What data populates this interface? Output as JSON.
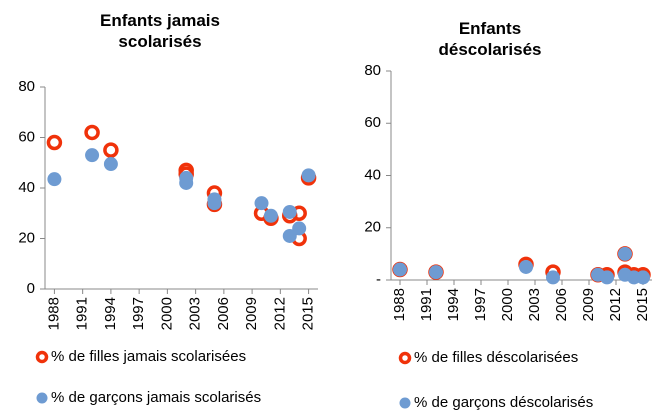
{
  "chart_data": [
    {
      "type": "scatter",
      "title": "Enfants jamais scolarisés",
      "xlim": [
        1987,
        2016
      ],
      "xticks": [
        1988,
        1991,
        1994,
        1997,
        2000,
        2003,
        2006,
        2009,
        2012,
        2015
      ],
      "ylim": [
        0,
        80
      ],
      "yticks": [
        0,
        20,
        40,
        60,
        80
      ],
      "grid": false,
      "series": [
        {
          "name": "% de filles jamais scolarisées",
          "color": "#f0320a",
          "marker": "ring",
          "x": [
            1988,
            1992,
            1994,
            2002,
            2002,
            2005,
            2005,
            2010,
            2011,
            2013,
            2014,
            2014,
            2015
          ],
          "values": [
            58,
            62,
            55,
            47,
            45.5,
            38,
            33.5,
            30,
            28,
            29,
            30,
            20,
            44
          ]
        },
        {
          "name": "% de garçons jamais scolarisés",
          "color": "#6e9bd2",
          "marker": "dot",
          "x": [
            1988,
            1992,
            1994,
            2002,
            2002,
            2005,
            2005,
            2010,
            2011,
            2013,
            2013,
            2014,
            2015
          ],
          "values": [
            43.5,
            53,
            49.5,
            44,
            42,
            35.5,
            34,
            34,
            29,
            30.5,
            21,
            24,
            45
          ]
        }
      ]
    },
    {
      "type": "scatter",
      "title": "Enfants déscolarisés",
      "xlim": [
        1987,
        2016
      ],
      "xticks": [
        1988,
        1991,
        1994,
        1997,
        2000,
        2003,
        2006,
        2009,
        2012,
        2015
      ],
      "ylim": [
        0,
        80
      ],
      "yticks": [
        {
          "value": 0,
          "label": "-"
        },
        20,
        40,
        60,
        80
      ],
      "grid": false,
      "series": [
        {
          "name": "% de filles déscolarisées",
          "color": "#f0320a",
          "marker": "ring",
          "x": [
            1988,
            1992,
            2002,
            2005,
            2010,
            2011,
            2013,
            2013,
            2014,
            2015
          ],
          "values": [
            4,
            3,
            6,
            3,
            2,
            2,
            10,
            3,
            2,
            2
          ]
        },
        {
          "name": "% de garçons déscolarisés",
          "color": "#6e9bd2",
          "marker": "dot",
          "x": [
            1988,
            1992,
            2002,
            2005,
            2010,
            2011,
            2013,
            2013,
            2014,
            2015
          ],
          "values": [
            4,
            3,
            5,
            1,
            2,
            1,
            10,
            2,
            1,
            1
          ]
        }
      ]
    }
  ]
}
